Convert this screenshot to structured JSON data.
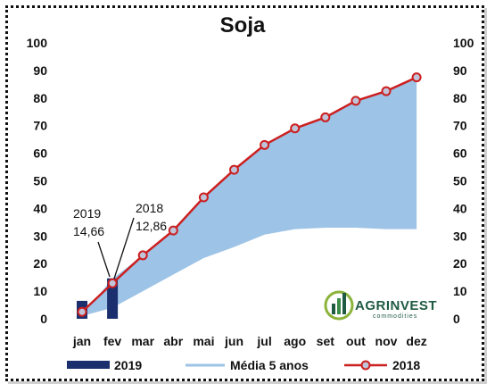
{
  "chart_data": {
    "type": "line",
    "title": "Soja",
    "categories": [
      "jan",
      "fev",
      "mar",
      "abr",
      "mai",
      "jun",
      "jul",
      "ago",
      "set",
      "out",
      "nov",
      "dez"
    ],
    "ylim": [
      0,
      100
    ],
    "yticks": [
      0,
      10,
      20,
      30,
      40,
      50,
      60,
      70,
      80,
      90,
      100
    ],
    "series": [
      {
        "name": "2019",
        "kind": "bar",
        "color": "#1b2f6e",
        "values": [
          6.5,
          14.66,
          null,
          null,
          null,
          null,
          null,
          null,
          null,
          null,
          null,
          null
        ]
      },
      {
        "name": "Média 5 anos",
        "kind": "band",
        "color": "#9dc3e6",
        "lower": [
          1,
          4,
          10,
          16,
          22,
          26,
          30.5,
          32.5,
          33,
          33,
          32.5,
          32.5
        ],
        "upper": [
          1.5,
          14.5,
          23,
          32,
          44,
          54,
          63,
          69,
          73,
          79,
          82.5,
          88
        ]
      },
      {
        "name": "2018",
        "kind": "line",
        "color": "#cc1f1f",
        "marker_color": "#c0c4d8",
        "values": [
          2.5,
          12.86,
          23,
          32,
          44,
          54,
          63,
          69,
          73,
          79,
          82.5,
          87.5
        ]
      }
    ],
    "annotations": [
      {
        "line1": "2019",
        "line2": "14,66"
      },
      {
        "line1": "2018",
        "line2": "12,86"
      }
    ],
    "legend_position": "bottom",
    "grid": false
  },
  "logo": {
    "name": "AGRINVEST",
    "tagline": "commodities"
  }
}
